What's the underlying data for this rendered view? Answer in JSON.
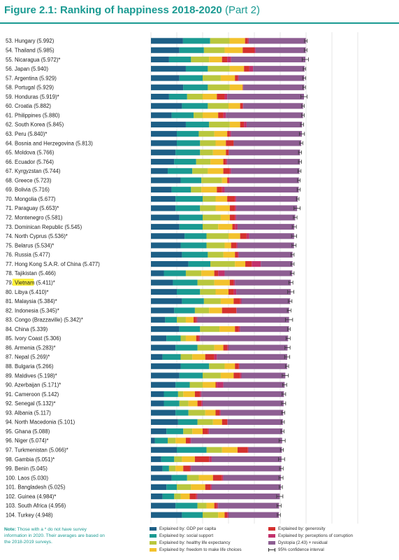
{
  "figure": {
    "title": "Figure 2.1: Ranking of happiness 2018-2020",
    "part": "(Part 2)"
  },
  "note": {
    "label": "Note:",
    "text": "Those with a * do not have survey information in 2020. Their averages are based on the 2018-2019 surveys."
  },
  "legend": [
    {
      "label": "Explained by: GDP per capita",
      "color": "#1d5f86"
    },
    {
      "label": "Explained by: social support",
      "color": "#1a9a92"
    },
    {
      "label": "Explained by: healthy life expectancy",
      "color": "#b9c73e"
    },
    {
      "label": "Explained by: freedom to make life choices",
      "color": "#f3c22d"
    },
    {
      "label": "Explained by: generosity",
      "color": "#d4312e"
    },
    {
      "label": "Explained by: perceptions of corruption",
      "color": "#c2326c"
    },
    {
      "label": "Dystopia (2.43) + residual",
      "color": "#8d5e92"
    },
    {
      "label": "95% confidence interval",
      "color": "#333333"
    }
  ],
  "chart_data": {
    "type": "bar",
    "orientation": "horizontal",
    "stacked": true,
    "xlim": [
      0,
      8
    ],
    "xticks": [
      "0",
      "1",
      "2",
      "3",
      "4",
      "5",
      "6",
      "7",
      "8"
    ],
    "series_order": [
      "gdp",
      "social",
      "health",
      "freedom",
      "generosity",
      "corruption",
      "dystopia"
    ],
    "series_colors": [
      "#1d5f86",
      "#1a9a92",
      "#b9c73e",
      "#f3c22d",
      "#d4312e",
      "#c2326c",
      "#8d5e92"
    ],
    "rows": [
      {
        "label": "53.  Hungary (5.992)",
        "score": 5.992,
        "ci": 0.05,
        "parts": [
          1.24,
          1.05,
          0.75,
          0.6,
          0.1,
          0.05
        ]
      },
      {
        "label": "54.  Thailand (5.985)",
        "score": 5.985,
        "ci": 0.05,
        "parts": [
          1.1,
          0.95,
          0.8,
          0.7,
          0.45,
          0.05
        ]
      },
      {
        "label": "55.  Nicaragua (5.972)*",
        "score": 5.972,
        "ci": 0.12,
        "parts": [
          0.7,
          0.85,
          0.7,
          0.5,
          0.2,
          0.15
        ]
      },
      {
        "label": "56.  Japan (5.940)",
        "score": 5.94,
        "ci": 0.05,
        "parts": [
          1.35,
          0.85,
          0.85,
          0.55,
          0.2,
          0.15
        ]
      },
      {
        "label": "57.  Argentina (5.929)",
        "score": 5.929,
        "ci": 0.06,
        "parts": [
          1.1,
          0.9,
          0.7,
          0.55,
          0.1,
          0.05
        ]
      },
      {
        "label": "58.  Portugal (5.929)",
        "score": 5.929,
        "ci": 0.05,
        "parts": [
          1.25,
          0.95,
          0.85,
          0.5,
          0.0,
          0.02
        ]
      },
      {
        "label": "59.  Honduras (5.919)*",
        "score": 5.919,
        "ci": 0.12,
        "parts": [
          0.7,
          0.7,
          0.6,
          0.55,
          0.3,
          0.1
        ]
      },
      {
        "label": "60.  Croatia (5.882)",
        "score": 5.882,
        "ci": 0.05,
        "parts": [
          1.2,
          1.0,
          0.8,
          0.45,
          0.1,
          0.02
        ]
      },
      {
        "label": "61.  Philippines (5.880)",
        "score": 5.88,
        "ci": 0.05,
        "parts": [
          0.8,
          0.85,
          0.35,
          0.6,
          0.2,
          0.1
        ]
      },
      {
        "label": "62.  South Korea (5.845)",
        "score": 5.845,
        "ci": 0.06,
        "parts": [
          1.35,
          0.9,
          0.8,
          0.4,
          0.15,
          0.1
        ]
      },
      {
        "label": "63.  Peru (5.840)*",
        "score": 5.84,
        "ci": 0.1,
        "parts": [
          1.0,
          0.85,
          0.6,
          0.5,
          0.1,
          0.05
        ]
      },
      {
        "label": "64.  Bosnia and Herzegovina (5.813)",
        "score": 5.813,
        "ci": 0.06,
        "parts": [
          1.0,
          0.9,
          0.6,
          0.4,
          0.3,
          0.0
        ]
      },
      {
        "label": "65.  Moldova (5.766)",
        "score": 5.766,
        "ci": 0.06,
        "parts": [
          0.95,
          0.95,
          0.5,
          0.5,
          0.1,
          0.02
        ]
      },
      {
        "label": "66.  Ecuador (5.764)",
        "score": 5.764,
        "ci": 0.06,
        "parts": [
          0.9,
          0.85,
          0.55,
          0.5,
          0.1,
          0.05
        ]
      },
      {
        "label": "67.  Kyrgyzstan (5.744)",
        "score": 5.744,
        "ci": 0.06,
        "parts": [
          0.65,
          0.95,
          0.6,
          0.6,
          0.25,
          0.05
        ]
      },
      {
        "label": "68.  Greece (5.723)",
        "score": 5.723,
        "ci": 0.05,
        "parts": [
          1.15,
          0.8,
          0.8,
          0.2,
          0.05,
          0.05
        ]
      },
      {
        "label": "69.  Bolivia (5.716)",
        "score": 5.716,
        "ci": 0.06,
        "parts": [
          0.8,
          0.75,
          0.4,
          0.6,
          0.2,
          0.1
        ]
      },
      {
        "label": "70.  Mongolia (5.677)",
        "score": 5.677,
        "ci": 0.05,
        "parts": [
          0.95,
          1.05,
          0.5,
          0.45,
          0.3,
          0.05
        ]
      },
      {
        "label": "71.  Paraguay (5.653)*",
        "score": 5.653,
        "ci": 0.12,
        "parts": [
          0.95,
          0.95,
          0.6,
          0.55,
          0.2,
          0.05
        ]
      },
      {
        "label": "72.  Montenegro (5.581)",
        "score": 5.581,
        "ci": 0.07,
        "parts": [
          1.1,
          0.9,
          0.7,
          0.35,
          0.2,
          0.05
        ]
      },
      {
        "label": "73.  Dominican Republic (5.545)",
        "score": 5.545,
        "ci": 0.08,
        "parts": [
          1.1,
          0.9,
          0.6,
          0.55,
          0.1,
          0.1
        ]
      },
      {
        "label": "74.  North Cyprus (5.536)*",
        "score": 5.536,
        "ci": 0.1,
        "parts": [
          1.3,
          0.85,
          0.85,
          0.45,
          0.25,
          0.1
        ]
      },
      {
        "label": "75.  Belarus (5.534)*",
        "score": 5.534,
        "ci": 0.08,
        "parts": [
          1.15,
          1.0,
          0.7,
          0.25,
          0.2,
          0.05
        ]
      },
      {
        "label": "76.  Russia (5.477)",
        "score": 5.477,
        "ci": 0.06,
        "parts": [
          1.2,
          1.0,
          0.6,
          0.45,
          0.1,
          0.05
        ]
      },
      {
        "label": "77.  Hong Kong S.A.R. of China (5.477)",
        "score": 5.477,
        "ci": 0.06,
        "parts": [
          1.45,
          0.85,
          0.95,
          0.4,
          0.25,
          0.35
        ]
      },
      {
        "label": "78.  Tajikistan (5.466)",
        "score": 5.466,
        "ci": 0.07,
        "parts": [
          0.5,
          0.85,
          0.6,
          0.5,
          0.15,
          0.25
        ]
      },
      {
        "label": "79.  Vietnam (5.411)*",
        "score": 5.411,
        "ci": 0.08,
        "parts": [
          0.85,
          0.95,
          0.65,
          0.6,
          0.15,
          0.05
        ],
        "highlight": true
      },
      {
        "label": "80.  Libya (5.410)*",
        "score": 5.41,
        "ci": 0.12,
        "parts": [
          1.0,
          0.9,
          0.6,
          0.5,
          0.2,
          0.1
        ]
      },
      {
        "label": "81.  Malaysia (5.384)*",
        "score": 5.384,
        "ci": 0.07,
        "parts": [
          1.2,
          0.85,
          0.65,
          0.5,
          0.25,
          0.05
        ]
      },
      {
        "label": "82.  Indonesia (5.345)*",
        "score": 5.345,
        "ci": 0.07,
        "parts": [
          0.9,
          0.8,
          0.55,
          0.5,
          0.55,
          0.02
        ]
      },
      {
        "label": "83.  Congo (Brazzaville) (5.342)*",
        "score": 5.342,
        "ci": 0.14,
        "parts": [
          0.55,
          0.45,
          0.35,
          0.3,
          0.1,
          0.05
        ]
      },
      {
        "label": "84.  China (5.339)",
        "score": 5.339,
        "ci": 0.05,
        "parts": [
          1.1,
          0.8,
          0.75,
          0.6,
          0.15,
          0.05
        ]
      },
      {
        "label": "85.  Ivory Coast (5.306)",
        "score": 5.306,
        "ci": 0.08,
        "parts": [
          0.6,
          0.55,
          0.2,
          0.4,
          0.1,
          0.05
        ]
      },
      {
        "label": "86.  Armenia (5.283)*",
        "score": 5.283,
        "ci": 0.1,
        "parts": [
          0.95,
          0.85,
          0.65,
          0.35,
          0.15,
          0.05
        ]
      },
      {
        "label": "87.  Nepal (5.269)*",
        "score": 5.269,
        "ci": 0.1,
        "parts": [
          0.45,
          0.7,
          0.45,
          0.5,
          0.35,
          0.1
        ]
      },
      {
        "label": "88.  Bulgaria (5.266)",
        "score": 5.266,
        "ci": 0.06,
        "parts": [
          1.15,
          1.1,
          0.6,
          0.4,
          0.15,
          0.02
        ]
      },
      {
        "label": "89.  Maldives (5.198)*",
        "score": 5.198,
        "ci": 0.12,
        "parts": [
          1.1,
          0.9,
          0.7,
          0.5,
          0.25,
          0.05
        ]
      },
      {
        "label": "90.  Azerbaijan (5.171)*",
        "score": 5.171,
        "ci": 0.08,
        "parts": [
          0.95,
          0.55,
          0.5,
          0.5,
          0.05,
          0.25
        ]
      },
      {
        "label": "91.  Cameroon (5.142)",
        "score": 5.142,
        "ci": 0.07,
        "parts": [
          0.5,
          0.55,
          0.2,
          0.45,
          0.2,
          0.05
        ]
      },
      {
        "label": "92.  Senegal (5.132)*",
        "score": 5.132,
        "ci": 0.08,
        "parts": [
          0.5,
          0.6,
          0.35,
          0.35,
          0.15,
          0.05
        ]
      },
      {
        "label": "93.  Albania (5.117)",
        "score": 5.117,
        "ci": 0.06,
        "parts": [
          0.95,
          0.5,
          0.65,
          0.4,
          0.15,
          0.05
        ]
      },
      {
        "label": "94.  North Macedonia (5.101)",
        "score": 5.101,
        "ci": 0.06,
        "parts": [
          1.05,
          0.75,
          0.6,
          0.35,
          0.2,
          0.02
        ]
      },
      {
        "label": "95.  Ghana (5.088)",
        "score": 5.088,
        "ci": 0.06,
        "parts": [
          0.6,
          0.65,
          0.35,
          0.4,
          0.2,
          0.05
        ]
      },
      {
        "label": "96.  Niger (5.074)*",
        "score": 5.074,
        "ci": 0.12,
        "parts": [
          0.15,
          0.5,
          0.3,
          0.4,
          0.15,
          0.05
        ]
      },
      {
        "label": "97.  Turkmenistan (5.066)*",
        "score": 5.066,
        "ci": 0.06,
        "parts": [
          1.0,
          1.15,
          0.6,
          0.6,
          0.4,
          0.02
        ]
      },
      {
        "label": "98.  Gambia (5.051)*",
        "score": 5.051,
        "ci": 0.12,
        "parts": [
          0.4,
          0.5,
          0.3,
          0.5,
          0.55,
          0.1
        ]
      },
      {
        "label": "99.  Benin (5.045)",
        "score": 5.045,
        "ci": 0.07,
        "parts": [
          0.45,
          0.25,
          0.25,
          0.3,
          0.25,
          0.05
        ]
      },
      {
        "label": "100. Laos (5.030)",
        "score": 5.03,
        "ci": 0.08,
        "parts": [
          0.8,
          0.6,
          0.45,
          0.55,
          0.35,
          0.05
        ]
      },
      {
        "label": "101. Bangladesh (5.025)",
        "score": 5.025,
        "ci": 0.06,
        "parts": [
          0.6,
          0.4,
          0.55,
          0.55,
          0.2,
          0.05
        ]
      },
      {
        "label": "102. Guinea (4.984)*",
        "score": 4.984,
        "ci": 0.12,
        "parts": [
          0.45,
          0.45,
          0.25,
          0.35,
          0.25,
          0.05
        ]
      },
      {
        "label": "103. South Africa (4.956)",
        "score": 4.956,
        "ci": 0.08,
        "parts": [
          0.95,
          0.85,
          0.35,
          0.3,
          0.1,
          0.05
        ]
      },
      {
        "label": "104. Turkey (4.948)",
        "score": 4.948,
        "ci": 0.06,
        "parts": [
          1.2,
          0.8,
          0.6,
          0.25,
          0.1,
          0.05
        ]
      }
    ]
  }
}
